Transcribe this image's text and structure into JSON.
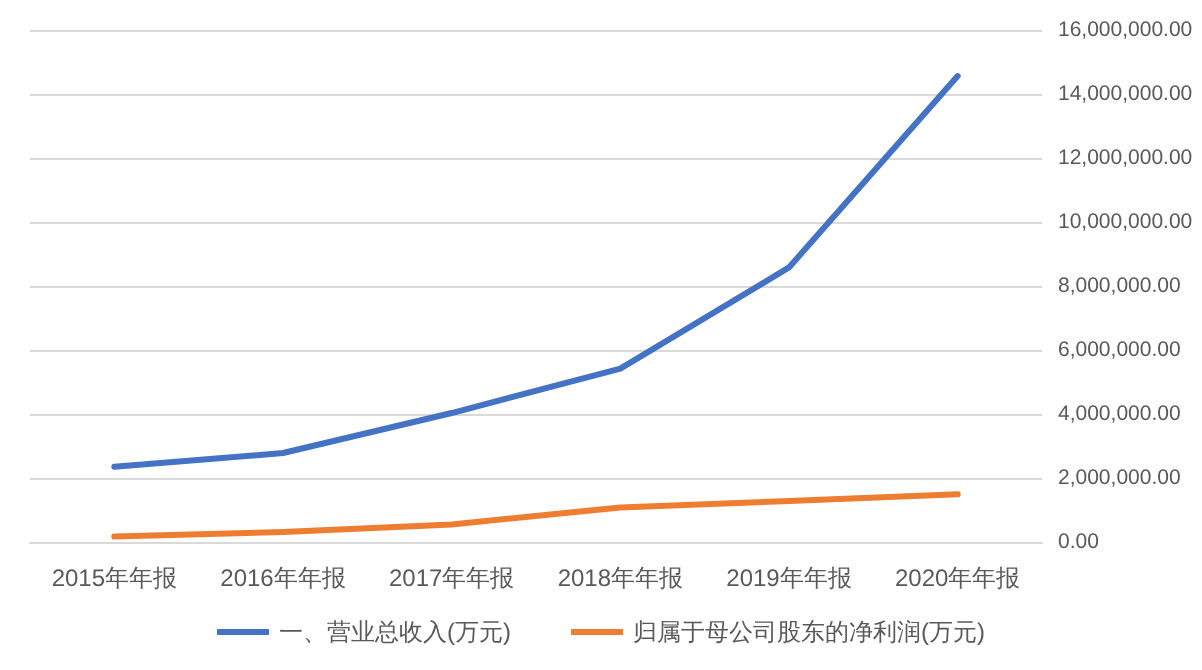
{
  "chart_data": {
    "type": "line",
    "categories": [
      "2015年年报",
      "2016年年报",
      "2017年年报",
      "2018年年报",
      "2019年年报",
      "2020年年报"
    ],
    "series": [
      {
        "name": "一、营业总收入(万元)",
        "color": "#4472c4",
        "values": [
          2350000,
          2780000,
          4030000,
          5420000,
          8580000,
          14560000
        ]
      },
      {
        "name": "归属于母公司股东的净利润(万元)",
        "color": "#ed7d31",
        "values": [
          170000,
          310000,
          550000,
          1080000,
          1280000,
          1490000
        ]
      }
    ],
    "ylim": [
      0,
      16000000
    ],
    "yticks": [
      {
        "value": 0,
        "label": "0.00"
      },
      {
        "value": 2000000,
        "label": "2,000,000.00"
      },
      {
        "value": 4000000,
        "label": "4,000,000.00"
      },
      {
        "value": 6000000,
        "label": "6,000,000.00"
      },
      {
        "value": 8000000,
        "label": "8,000,000.00"
      },
      {
        "value": 10000000,
        "label": "10,000,000.00"
      },
      {
        "value": 12000000,
        "label": "12,000,000.00"
      },
      {
        "value": 14000000,
        "label": "14,000,000.00"
      },
      {
        "value": 16000000,
        "label": "16,000,000.00"
      }
    ],
    "grid": "y",
    "legend": "bottom",
    "marker": "none",
    "line_style": "solid"
  }
}
